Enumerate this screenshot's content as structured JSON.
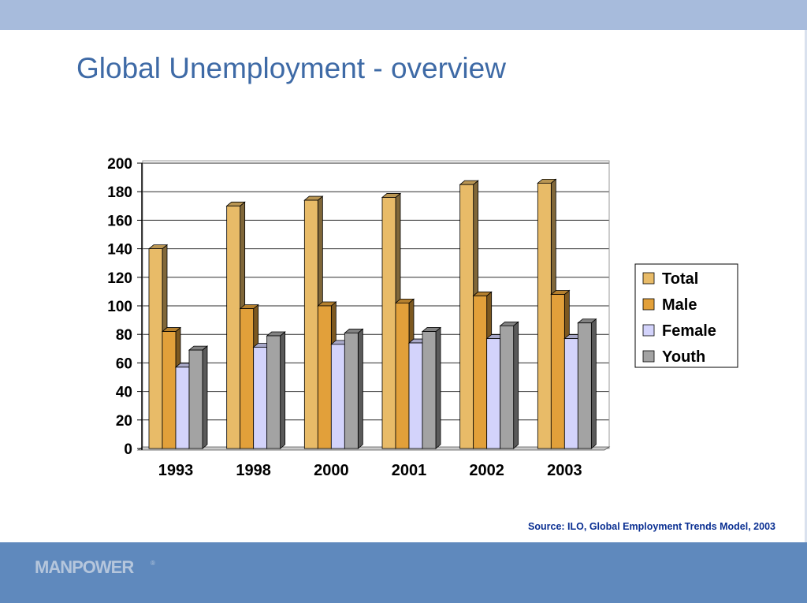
{
  "slide": {
    "title": "Global Unemployment - overview",
    "source": "Source: ILO, Global Employment Trends Model, 2003",
    "logo": "MANPOWER",
    "logo_mark": "®"
  },
  "colors": {
    "top_band": "#a7bbdc",
    "bottom_band": "#5f89bd",
    "title": "#3e6aa6",
    "source": "#0a2f92"
  },
  "chart_data": {
    "type": "bar",
    "title": "",
    "xlabel": "",
    "ylabel": "",
    "categories": [
      "1993",
      "1998",
      "2000",
      "2001",
      "2002",
      "2003"
    ],
    "series": [
      {
        "name": "Total",
        "values": [
          140,
          170,
          174,
          176,
          185,
          186
        ],
        "color": "#e8bb68"
      },
      {
        "name": "Male",
        "values": [
          82,
          98,
          100,
          102,
          107,
          108
        ],
        "color": "#e2a03a"
      },
      {
        "name": "Female",
        "values": [
          57,
          71,
          73,
          74,
          77,
          77
        ],
        "color": "#d3d3fb"
      },
      {
        "name": "Youth",
        "values": [
          69,
          79,
          81,
          82,
          86,
          88
        ],
        "color": "#a3a3a3"
      }
    ],
    "ylim": [
      0,
      200
    ],
    "yticks": [
      0,
      20,
      40,
      60,
      80,
      100,
      120,
      140,
      160,
      180,
      200
    ],
    "grid": true,
    "legend": "right",
    "style": "3d-columns"
  }
}
